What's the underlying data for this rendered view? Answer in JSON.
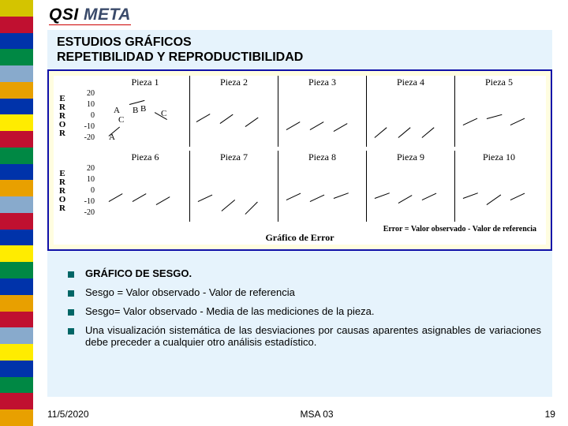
{
  "brand": {
    "qsi": "QSI",
    "meta": "META"
  },
  "title_line1": "ESTUDIOS GRÁFICOS",
  "title_line2": "REPETIBILIDAD Y REPRODUCTIBILIDAD",
  "chart": {
    "ylabel": "E\nR\nR\nO\nR",
    "ticks": [
      "20",
      "10",
      "0",
      "-10",
      "-20"
    ],
    "rows": [
      {
        "panels": [
          "Pieza 1",
          "Pieza 2",
          "Pieza 3",
          "Pieza 4",
          "Pieza 5"
        ]
      },
      {
        "panels": [
          "Pieza 6",
          "Pieza 7",
          "Pieza 8",
          "Pieza 9",
          "Pieza 10"
        ]
      }
    ],
    "annot_A": "A",
    "annot_B": "B",
    "annot_C": "C",
    "caption_error": "Error = Valor observado - Valor de referencia",
    "caption_main": "Gráfico de Error",
    "line_segments": [
      {
        "row": 0,
        "panel": 0,
        "x": 6,
        "y": 58,
        "len": 18,
        "ang": -40
      },
      {
        "row": 0,
        "panel": 0,
        "x": 32,
        "y": 18,
        "len": 20,
        "ang": -15
      },
      {
        "row": 0,
        "panel": 0,
        "x": 64,
        "y": 28,
        "len": 18,
        "ang": 30
      },
      {
        "row": 0,
        "panel": 1,
        "x": 4,
        "y": 40,
        "len": 20,
        "ang": -30
      },
      {
        "row": 0,
        "panel": 1,
        "x": 34,
        "y": 42,
        "len": 20,
        "ang": -35
      },
      {
        "row": 0,
        "panel": 1,
        "x": 66,
        "y": 46,
        "len": 20,
        "ang": -35
      },
      {
        "row": 0,
        "panel": 2,
        "x": 6,
        "y": 50,
        "len": 20,
        "ang": -30
      },
      {
        "row": 0,
        "panel": 2,
        "x": 36,
        "y": 50,
        "len": 20,
        "ang": -30
      },
      {
        "row": 0,
        "panel": 2,
        "x": 66,
        "y": 52,
        "len": 20,
        "ang": -30
      },
      {
        "row": 0,
        "panel": 3,
        "x": 6,
        "y": 60,
        "len": 20,
        "ang": -40
      },
      {
        "row": 0,
        "panel": 3,
        "x": 36,
        "y": 60,
        "len": 20,
        "ang": -40
      },
      {
        "row": 0,
        "panel": 3,
        "x": 66,
        "y": 60,
        "len": 20,
        "ang": -40
      },
      {
        "row": 0,
        "panel": 4,
        "x": 6,
        "y": 44,
        "len": 20,
        "ang": -25
      },
      {
        "row": 0,
        "panel": 4,
        "x": 36,
        "y": 36,
        "len": 20,
        "ang": -15
      },
      {
        "row": 0,
        "panel": 4,
        "x": 66,
        "y": 44,
        "len": 20,
        "ang": -25
      },
      {
        "row": 1,
        "panel": 0,
        "x": 6,
        "y": 46,
        "len": 20,
        "ang": -30
      },
      {
        "row": 1,
        "panel": 0,
        "x": 36,
        "y": 46,
        "len": 20,
        "ang": -30
      },
      {
        "row": 1,
        "panel": 0,
        "x": 66,
        "y": 50,
        "len": 20,
        "ang": -30
      },
      {
        "row": 1,
        "panel": 1,
        "x": 6,
        "y": 46,
        "len": 20,
        "ang": -25
      },
      {
        "row": 1,
        "panel": 1,
        "x": 36,
        "y": 58,
        "len": 22,
        "ang": -40
      },
      {
        "row": 1,
        "panel": 1,
        "x": 66,
        "y": 62,
        "len": 22,
        "ang": -45
      },
      {
        "row": 1,
        "panel": 2,
        "x": 6,
        "y": 44,
        "len": 20,
        "ang": -25
      },
      {
        "row": 1,
        "panel": 2,
        "x": 36,
        "y": 46,
        "len": 20,
        "ang": -25
      },
      {
        "row": 1,
        "panel": 2,
        "x": 66,
        "y": 42,
        "len": 20,
        "ang": -20
      },
      {
        "row": 1,
        "panel": 3,
        "x": 6,
        "y": 42,
        "len": 20,
        "ang": -20
      },
      {
        "row": 1,
        "panel": 3,
        "x": 36,
        "y": 48,
        "len": 20,
        "ang": -30
      },
      {
        "row": 1,
        "panel": 3,
        "x": 66,
        "y": 44,
        "len": 20,
        "ang": -25
      },
      {
        "row": 1,
        "panel": 4,
        "x": 6,
        "y": 42,
        "len": 20,
        "ang": -20
      },
      {
        "row": 1,
        "panel": 4,
        "x": 36,
        "y": 50,
        "len": 22,
        "ang": -35
      },
      {
        "row": 1,
        "panel": 4,
        "x": 66,
        "y": 44,
        "len": 20,
        "ang": -25
      }
    ]
  },
  "bullets": [
    "GRÁFICO DE SESGO.",
    "Sesgo = Valor observado - Valor de referencia",
    "Sesgo= Valor observado - Media de las mediciones de la pieza.",
    "Una visualización sistemática de las desviaciones por causas aparentes asignables de variaciones debe preceder a cualquier otro análisis estadístico."
  ],
  "footer": {
    "date": "11/5/2020",
    "center": "MSA 03",
    "page": "19"
  },
  "sidebar_colors": [
    "#d4c400",
    "#c01030",
    "#0033aa",
    "#008844",
    "#88aacc",
    "#e8a000",
    "#0033aa",
    "#ffec00",
    "#c01030",
    "#008844",
    "#0033aa",
    "#e8a000",
    "#88aacc",
    "#c01030",
    "#0033aa",
    "#ffec00",
    "#008844",
    "#0033aa",
    "#e8a000",
    "#c01030",
    "#88aacc",
    "#ffec00",
    "#0033aa",
    "#008844",
    "#c01030",
    "#e8a000"
  ]
}
